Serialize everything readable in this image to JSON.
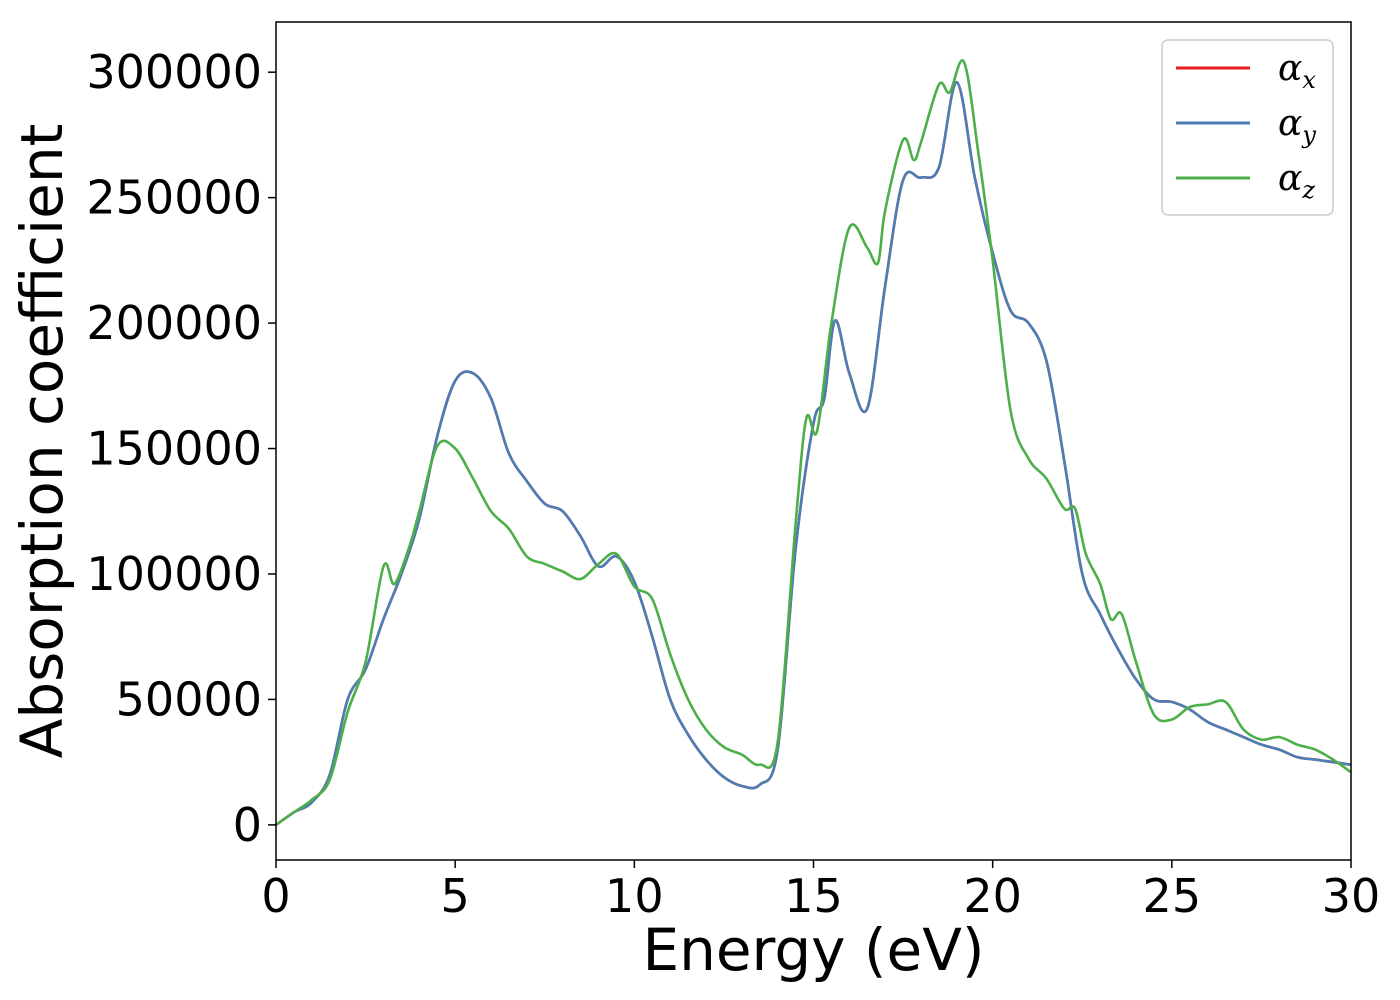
{
  "chart_data": {
    "type": "line",
    "title": "",
    "xlabel": "Energy (eV)",
    "ylabel": "Absorption coefficient",
    "xlim": [
      0,
      30
    ],
    "ylim": [
      -14000,
      320000
    ],
    "xticks": [
      0,
      5,
      10,
      15,
      20,
      25,
      30
    ],
    "yticks": [
      0,
      50000,
      100000,
      150000,
      200000,
      250000,
      300000
    ],
    "xtick_labels": [
      "0",
      "5",
      "10",
      "15",
      "20",
      "25",
      "30"
    ],
    "ytick_labels": [
      "0",
      "50000",
      "100000",
      "150000",
      "200000",
      "250000",
      "300000"
    ],
    "grid": false,
    "legend_position": "top-right",
    "series": [
      {
        "name": "αx",
        "legend_base": "α",
        "legend_sub": "x",
        "color": "#e41a1c",
        "x": [
          0,
          0.5,
          1,
          1.5,
          2,
          2.5,
          3,
          3.5,
          4,
          4.5,
          5,
          5.5,
          6,
          6.5,
          7,
          7.5,
          8,
          8.5,
          9,
          9.5,
          10,
          10.5,
          11,
          11.5,
          12,
          12.5,
          13,
          13.5,
          14,
          14.5,
          15,
          15.3,
          15.6,
          16,
          16.5,
          17,
          17.5,
          18,
          18.5,
          19,
          19.5,
          20,
          20.5,
          21,
          21.5,
          22,
          22.5,
          23,
          23.5,
          24,
          24.5,
          25,
          25.5,
          26,
          26.5,
          27,
          27.5,
          28,
          28.5,
          29,
          29.5,
          30
        ],
        "y": [
          0,
          5000,
          9000,
          20000,
          50000,
          62000,
          82000,
          100000,
          122000,
          155000,
          177000,
          180000,
          170000,
          148000,
          137000,
          128000,
          125000,
          115000,
          103000,
          107000,
          97000,
          75000,
          50000,
          36000,
          26000,
          19000,
          15500,
          16000,
          30000,
          110000,
          160000,
          170000,
          201000,
          180000,
          166000,
          215000,
          257000,
          258000,
          262000,
          296000,
          258000,
          228000,
          205000,
          200000,
          185000,
          145000,
          100000,
          84000,
          70000,
          58000,
          50000,
          49000,
          46000,
          41000,
          38000,
          35000,
          32000,
          30000,
          27000,
          26000,
          25000,
          24000
        ]
      },
      {
        "name": "αy",
        "legend_base": "α",
        "legend_sub": "y",
        "color": "#4a7eb5",
        "x": [
          0,
          0.5,
          1,
          1.5,
          2,
          2.5,
          3,
          3.5,
          4,
          4.5,
          5,
          5.5,
          6,
          6.5,
          7,
          7.5,
          8,
          8.5,
          9,
          9.5,
          10,
          10.5,
          11,
          11.5,
          12,
          12.5,
          13,
          13.5,
          14,
          14.5,
          15,
          15.3,
          15.6,
          16,
          16.5,
          17,
          17.5,
          18,
          18.5,
          19,
          19.5,
          20,
          20.5,
          21,
          21.5,
          22,
          22.5,
          23,
          23.5,
          24,
          24.5,
          25,
          25.5,
          26,
          26.5,
          27,
          27.5,
          28,
          28.5,
          29,
          29.5,
          30
        ],
        "y": [
          0,
          5000,
          9000,
          20000,
          50000,
          62000,
          82000,
          100000,
          122000,
          155000,
          177000,
          180000,
          170000,
          148000,
          137000,
          128000,
          125000,
          115000,
          103000,
          107000,
          97000,
          75000,
          50000,
          36000,
          26000,
          19000,
          15500,
          16000,
          30000,
          110000,
          160000,
          170000,
          201000,
          180000,
          166000,
          215000,
          257000,
          258000,
          262000,
          296000,
          258000,
          228000,
          205000,
          200000,
          185000,
          145000,
          100000,
          84000,
          70000,
          58000,
          50000,
          49000,
          46000,
          41000,
          38000,
          35000,
          32000,
          30000,
          27000,
          26000,
          25000,
          24000
        ]
      },
      {
        "name": "αz",
        "legend_base": "α",
        "legend_sub": "z",
        "color": "#4daf4a",
        "x": [
          0,
          0.5,
          1,
          1.5,
          2,
          2.5,
          3,
          3.3,
          3.7,
          4,
          4.5,
          5,
          5.5,
          6,
          6.5,
          7,
          7.5,
          8,
          8.5,
          9,
          9.5,
          10,
          10.5,
          11,
          11.5,
          12,
          12.5,
          13,
          13.5,
          14,
          14.5,
          14.8,
          15.1,
          15.5,
          16,
          16.5,
          16.8,
          17,
          17.5,
          17.8,
          18,
          18.5,
          18.8,
          19.2,
          19.6,
          20,
          20.5,
          21,
          21.5,
          22,
          22.3,
          22.6,
          23,
          23.3,
          23.6,
          24,
          24.5,
          25,
          25.5,
          26,
          26.5,
          27,
          27.5,
          28,
          28.5,
          29,
          29.5,
          30
        ],
        "y": [
          0,
          5000,
          10000,
          18000,
          45000,
          65000,
          103000,
          96000,
          110000,
          125000,
          151000,
          150000,
          138000,
          125000,
          118000,
          107000,
          104000,
          101000,
          98000,
          104000,
          108000,
          95000,
          90000,
          68000,
          50000,
          38000,
          31000,
          28000,
          24000,
          33000,
          120000,
          162000,
          157000,
          200000,
          238000,
          230000,
          224000,
          245000,
          273000,
          265000,
          272000,
          295000,
          292000,
          304000,
          268000,
          225000,
          165000,
          146000,
          138000,
          126000,
          126000,
          108000,
          96000,
          82000,
          84000,
          65000,
          44000,
          42000,
          47000,
          48000,
          49000,
          38000,
          34000,
          35000,
          32000,
          30000,
          26000,
          21000
        ]
      }
    ]
  }
}
